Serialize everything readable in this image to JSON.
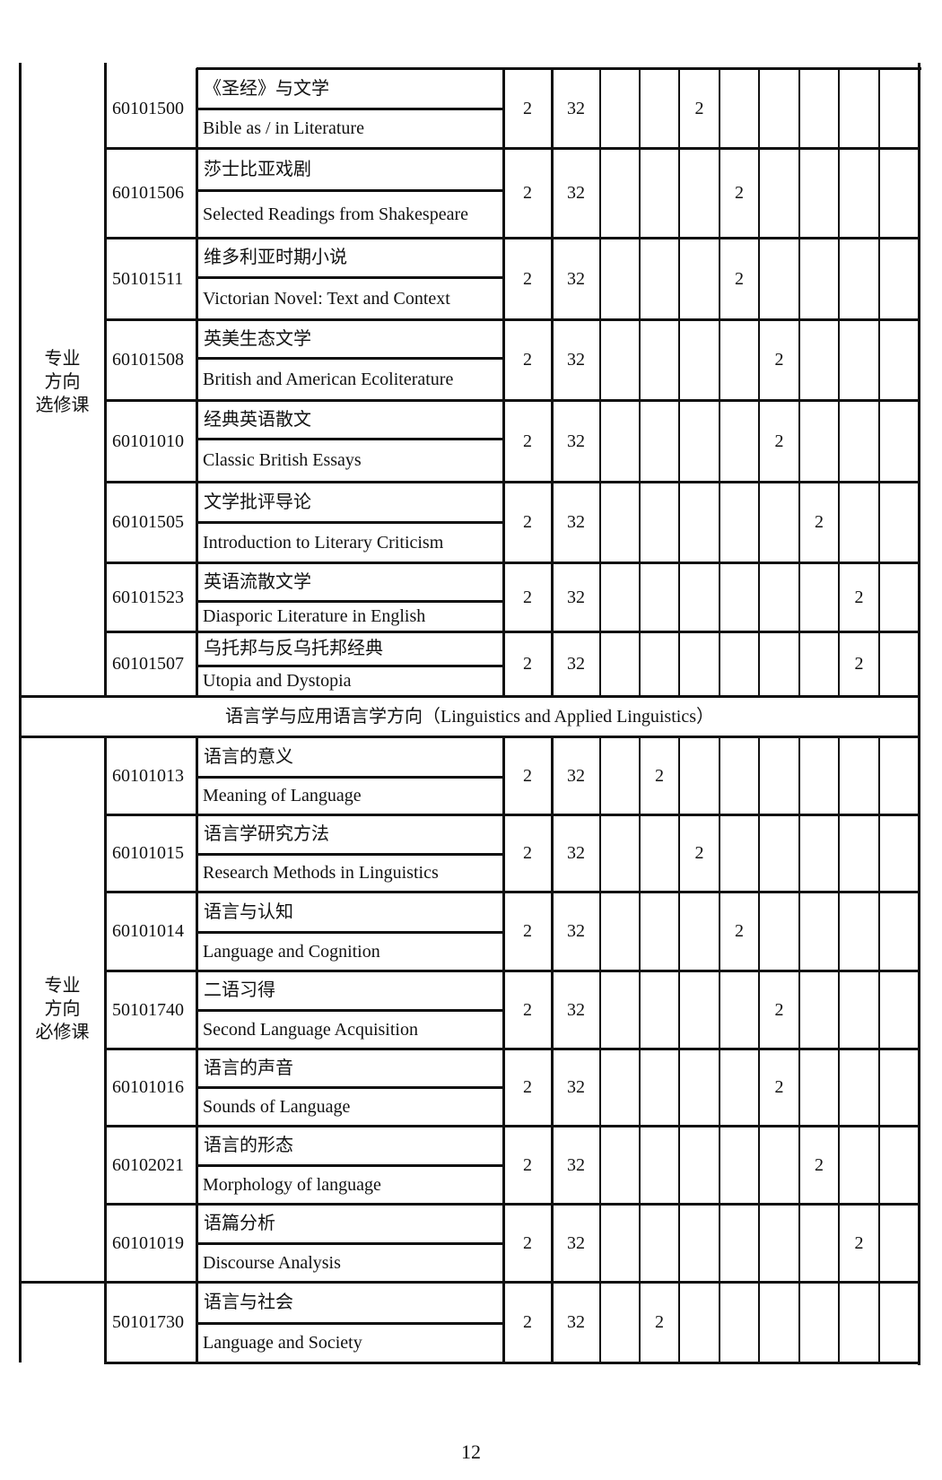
{
  "groups": [
    {
      "label_lines": [
        "专业",
        "方向",
        "选修课"
      ]
    },
    {
      "label_lines": [
        "专业",
        "方向",
        "必修课"
      ]
    },
    {
      "label_lines": []
    }
  ],
  "section_header": "语言学与应用语言学方向（Linguistics and Applied Linguistics）",
  "rows": [
    {
      "code": "60101500",
      "name_cn": "《圣经》与文学",
      "name_en": "Bible as / in Literature",
      "credits": "2",
      "hours": "32",
      "semesters": [
        "",
        "",
        "2",
        "",
        "",
        "",
        "",
        ""
      ]
    },
    {
      "code": "60101506",
      "name_cn": "莎士比亚戏剧",
      "name_en": "Selected Readings from Shakespeare",
      "credits": "2",
      "hours": "32",
      "semesters": [
        "",
        "",
        "",
        "2",
        "",
        "",
        "",
        ""
      ]
    },
    {
      "code": "50101511",
      "name_cn": "维多利亚时期小说",
      "name_en": "Victorian Novel: Text and Context",
      "credits": "2",
      "hours": "32",
      "semesters": [
        "",
        "",
        "",
        "2",
        "",
        "",
        "",
        ""
      ]
    },
    {
      "code": "60101508",
      "name_cn": "英美生态文学",
      "name_en": "British and American Ecoliterature",
      "credits": "2",
      "hours": "32",
      "semesters": [
        "",
        "",
        "",
        "",
        "2",
        "",
        "",
        ""
      ]
    },
    {
      "code": "60101010",
      "name_cn": "经典英语散文",
      "name_en": "Classic British Essays",
      "credits": "2",
      "hours": "32",
      "semesters": [
        "",
        "",
        "",
        "",
        "2",
        "",
        "",
        ""
      ]
    },
    {
      "code": "60101505",
      "name_cn": "文学批评导论",
      "name_en": "Introduction to Literary Criticism",
      "credits": "2",
      "hours": "32",
      "semesters": [
        "",
        "",
        "",
        "",
        "",
        "2",
        "",
        ""
      ]
    },
    {
      "code": "60101523",
      "name_cn": "英语流散文学",
      "name_en": "Diasporic Literature in English",
      "credits": "2",
      "hours": "32",
      "semesters": [
        "",
        "",
        "",
        "",
        "",
        "",
        "2",
        ""
      ]
    },
    {
      "code": "60101507",
      "name_cn": "乌托邦与反乌托邦经典",
      "name_en": "Utopia and Dystopia",
      "credits": "2",
      "hours": "32",
      "semesters": [
        "",
        "",
        "",
        "",
        "",
        "",
        "2",
        ""
      ]
    },
    {
      "code": "60101013",
      "name_cn": "语言的意义",
      "name_en": "Meaning of Language",
      "credits": "2",
      "hours": "32",
      "semesters": [
        "",
        "2",
        "",
        "",
        "",
        "",
        "",
        ""
      ]
    },
    {
      "code": "60101015",
      "name_cn": "语言学研究方法",
      "name_en": "Research Methods in Linguistics",
      "credits": "2",
      "hours": "32",
      "semesters": [
        "",
        "",
        "2",
        "",
        "",
        "",
        "",
        ""
      ]
    },
    {
      "code": "60101014",
      "name_cn": "语言与认知",
      "name_en": "Language and Cognition",
      "credits": "2",
      "hours": "32",
      "semesters": [
        "",
        "",
        "",
        "2",
        "",
        "",
        "",
        ""
      ]
    },
    {
      "code": "50101740",
      "name_cn": "二语习得",
      "name_en": "Second Language Acquisition",
      "credits": "2",
      "hours": "32",
      "semesters": [
        "",
        "",
        "",
        "",
        "2",
        "",
        "",
        ""
      ]
    },
    {
      "code": "60101016",
      "name_cn": "语言的声音",
      "name_en": "Sounds of Language",
      "credits": "2",
      "hours": "32",
      "semesters": [
        "",
        "",
        "",
        "",
        "2",
        "",
        "",
        ""
      ]
    },
    {
      "code": "60102021",
      "name_cn": "语言的形态",
      "name_en": "Morphology of language",
      "credits": "2",
      "hours": "32",
      "semesters": [
        "",
        "",
        "",
        "",
        "",
        "2",
        "",
        ""
      ]
    },
    {
      "code": "60101019",
      "name_cn": "语篇分析",
      "name_en": "Discourse Analysis",
      "credits": "2",
      "hours": "32",
      "semesters": [
        "",
        "",
        "",
        "",
        "",
        "",
        "2",
        ""
      ]
    },
    {
      "code": "50101730",
      "name_cn": "语言与社会",
      "name_en": "Language and Society",
      "credits": "2",
      "hours": "32",
      "semesters": [
        "",
        "2",
        "",
        "",
        "",
        "",
        "",
        ""
      ]
    }
  ],
  "page_number": "12"
}
